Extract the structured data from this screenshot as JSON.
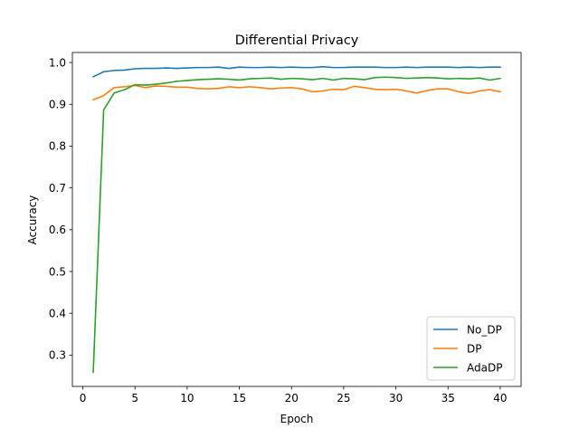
{
  "chart_data": {
    "type": "line",
    "title": "Differential Privacy",
    "xlabel": "Epoch",
    "ylabel": "Accuracy",
    "xlim": [
      -1,
      42
    ],
    "ylim": [
      0.225,
      1.024
    ],
    "xticks": [
      0,
      5,
      10,
      15,
      20,
      25,
      30,
      35,
      40
    ],
    "yticks": [
      0.3,
      0.4,
      0.5,
      0.6,
      0.7,
      0.8,
      0.9,
      1.0
    ],
    "ytick_labels": [
      "0.3",
      "0.4",
      "0.5",
      "0.6",
      "0.7",
      "0.8",
      "0.9",
      "1.0"
    ],
    "grid": false,
    "legend_position": "lower-right",
    "x": [
      1,
      2,
      3,
      4,
      5,
      6,
      7,
      8,
      9,
      10,
      11,
      12,
      13,
      14,
      15,
      16,
      17,
      18,
      19,
      20,
      21,
      22,
      23,
      24,
      25,
      26,
      27,
      28,
      29,
      30,
      31,
      32,
      33,
      34,
      35,
      36,
      37,
      38,
      39,
      40
    ],
    "series": [
      {
        "name": "No_DP",
        "color": "#1f77b4",
        "values": [
          0.966,
          0.978,
          0.981,
          0.982,
          0.985,
          0.986,
          0.986,
          0.987,
          0.986,
          0.987,
          0.988,
          0.988,
          0.989,
          0.986,
          0.989,
          0.988,
          0.988,
          0.989,
          0.988,
          0.989,
          0.988,
          0.988,
          0.99,
          0.988,
          0.988,
          0.989,
          0.989,
          0.989,
          0.988,
          0.988,
          0.989,
          0.988,
          0.989,
          0.989,
          0.989,
          0.988,
          0.989,
          0.988,
          0.989,
          0.989
        ]
      },
      {
        "name": "DP",
        "color": "#ff7f0e",
        "values": [
          0.911,
          0.921,
          0.94,
          0.942,
          0.945,
          0.94,
          0.944,
          0.943,
          0.941,
          0.941,
          0.938,
          0.937,
          0.938,
          0.942,
          0.94,
          0.942,
          0.94,
          0.937,
          0.939,
          0.94,
          0.937,
          0.93,
          0.932,
          0.936,
          0.935,
          0.943,
          0.94,
          0.936,
          0.935,
          0.936,
          0.932,
          0.927,
          0.933,
          0.937,
          0.937,
          0.93,
          0.926,
          0.932,
          0.935,
          0.93
        ]
      },
      {
        "name": "AdaDP",
        "color": "#2ca02c",
        "values": [
          0.259,
          0.887,
          0.927,
          0.935,
          0.947,
          0.946,
          0.948,
          0.951,
          0.955,
          0.957,
          0.959,
          0.96,
          0.961,
          0.96,
          0.958,
          0.961,
          0.962,
          0.963,
          0.96,
          0.962,
          0.961,
          0.959,
          0.962,
          0.958,
          0.962,
          0.961,
          0.959,
          0.964,
          0.965,
          0.964,
          0.962,
          0.963,
          0.964,
          0.963,
          0.961,
          0.962,
          0.961,
          0.963,
          0.958,
          0.962
        ]
      }
    ]
  }
}
